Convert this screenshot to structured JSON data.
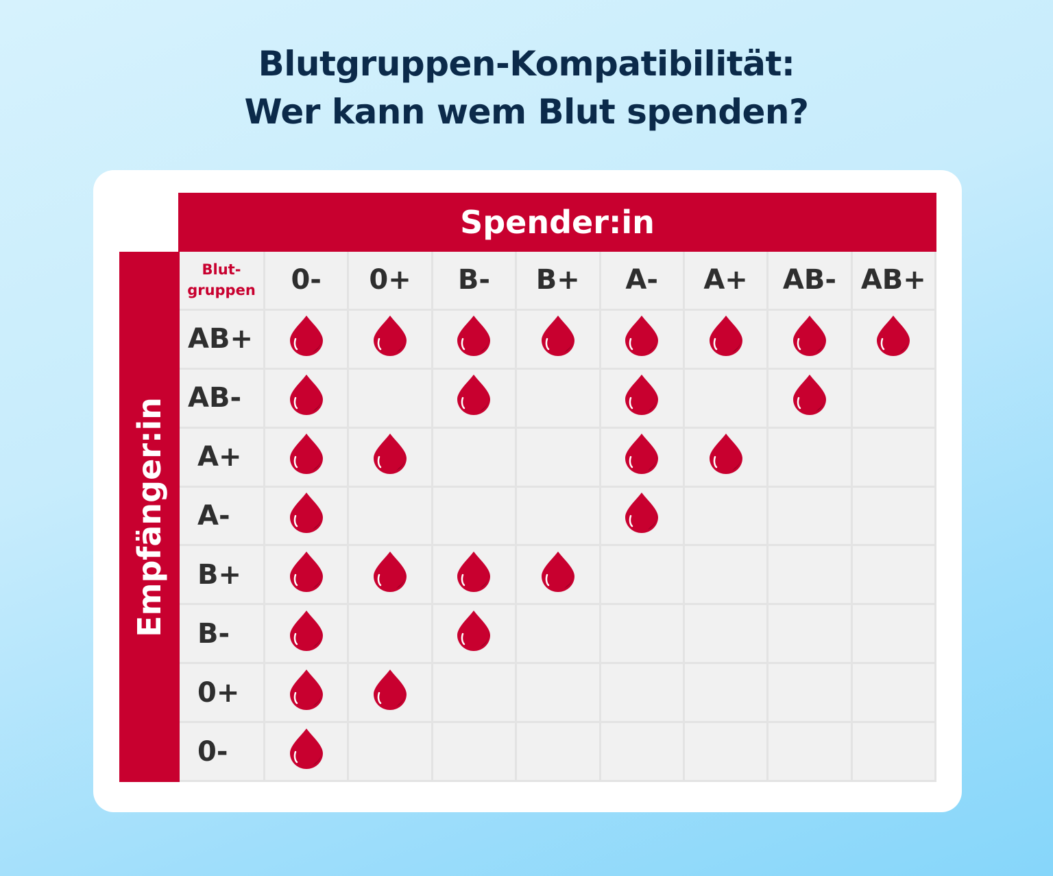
{
  "title": {
    "line1": "Blutgruppen-Kompatibilität:",
    "line2": "Wer kann wem Blut spenden?"
  },
  "donor_label": "Spender:in",
  "recipient_label": "Empfänger:in",
  "corner_label": {
    "line1": "Blut-",
    "line2": "gruppen"
  },
  "donors": [
    "0-",
    "0+",
    "B-",
    "B+",
    "A-",
    "A+",
    "AB-",
    "AB+"
  ],
  "recipients": [
    "AB+",
    "AB-",
    "A+",
    "A-",
    "B+",
    "B-",
    "0+",
    "0-"
  ],
  "compatibility": [
    [
      1,
      1,
      1,
      1,
      1,
      1,
      1,
      1
    ],
    [
      1,
      0,
      1,
      0,
      1,
      0,
      1,
      0
    ],
    [
      1,
      1,
      0,
      0,
      1,
      1,
      0,
      0
    ],
    [
      1,
      0,
      0,
      0,
      1,
      0,
      0,
      0
    ],
    [
      1,
      1,
      1,
      1,
      0,
      0,
      0,
      0
    ],
    [
      1,
      0,
      1,
      0,
      0,
      0,
      0,
      0
    ],
    [
      1,
      1,
      0,
      0,
      0,
      0,
      0,
      0
    ],
    [
      1,
      0,
      0,
      0,
      0,
      0,
      0,
      0
    ]
  ],
  "icon": "blood-drop-icon",
  "colors": {
    "accent": "#c8002f",
    "title": "#0b2a4a"
  }
}
